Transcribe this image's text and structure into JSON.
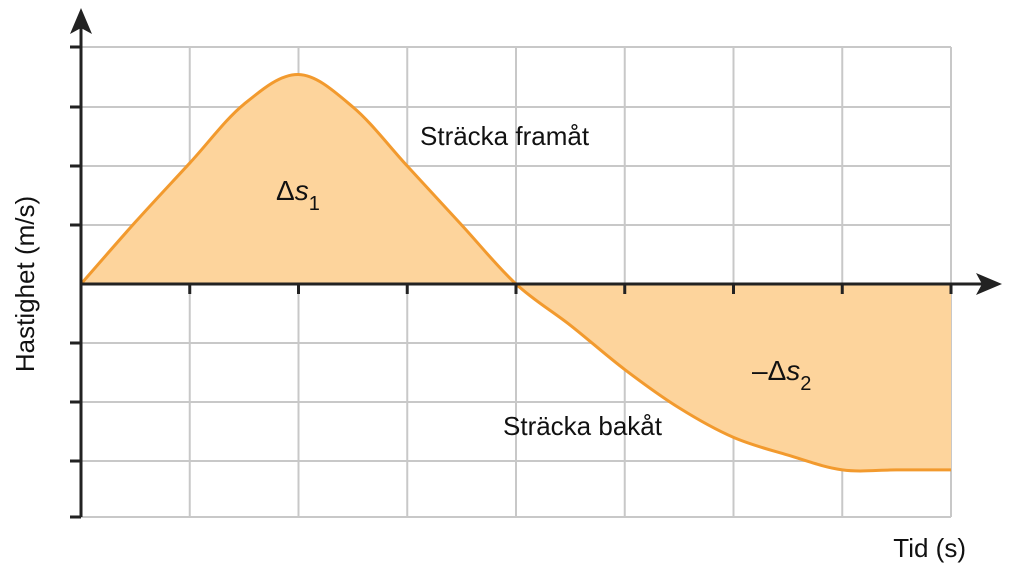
{
  "chart_data": {
    "type": "area",
    "xlabel": "Tid (s)",
    "ylabel": "Hastighet (m/s)",
    "xlim": [
      0,
      8
    ],
    "ylim": [
      -4,
      4
    ],
    "grid": true,
    "series": [
      {
        "x": [
          0,
          0.5,
          1,
          1.5,
          2,
          2.5,
          3,
          3.5,
          4,
          4.5,
          5,
          5.5,
          6,
          6.5,
          7,
          7.5,
          8
        ],
        "values": [
          0,
          1.05,
          2.05,
          3.05,
          3.55,
          3.0,
          2.0,
          1.0,
          0,
          -0.7,
          -1.45,
          -2.1,
          -2.6,
          -2.9,
          -3.15,
          -3.15,
          -3.15
        ]
      }
    ],
    "annotations": [
      {
        "text": "Sträcka framåt"
      },
      {
        "text": "Sträcka bakåt"
      }
    ],
    "regions": [
      {
        "prefix": "",
        "symbol": "Δ",
        "var": "s",
        "sub": "1"
      },
      {
        "prefix": "–",
        "symbol": "Δ",
        "var": "s",
        "sub": "2"
      }
    ],
    "colors": {
      "line": "#f29a2e",
      "fill": "#fdd49c",
      "grid": "#c8c8c8",
      "axis": "#222222"
    }
  }
}
